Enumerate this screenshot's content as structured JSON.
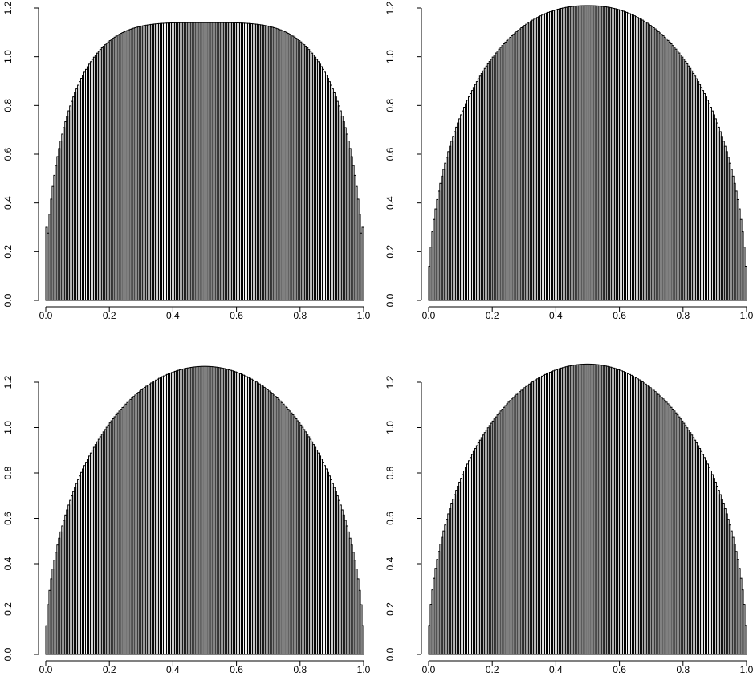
{
  "chart_data": [
    {
      "type": "histogram",
      "panel": "top-left",
      "title": "",
      "xlabel": "",
      "ylabel": "",
      "xlim": [
        0,
        1
      ],
      "ylim": [
        0,
        1.2
      ],
      "x_ticks": [
        "0.0",
        "0.2",
        "0.4",
        "0.6",
        "0.8",
        "1.0"
      ],
      "y_ticks": [
        "0.0",
        "0.2",
        "0.4",
        "0.6",
        "0.8",
        "1.0",
        "1.2"
      ],
      "bins": 200,
      "shape": "flat-topped arch (approx. 1.14*(1-|2x-1|^4)^0.5)",
      "peak_density": 1.14,
      "edge_density": 0.3,
      "bar_color": "#000000",
      "grid": false
    },
    {
      "type": "histogram",
      "panel": "top-right",
      "title": "",
      "xlabel": "",
      "ylabel": "",
      "xlim": [
        0,
        1
      ],
      "ylim": [
        0,
        1.2
      ],
      "x_ticks": [
        "0.0",
        "0.2",
        "0.4",
        "0.6",
        "0.8",
        "1.0"
      ],
      "y_ticks": [
        "0.0",
        "0.2",
        "0.4",
        "0.6",
        "0.8",
        "1.0",
        "1.2"
      ],
      "bins": 200,
      "shape": "semi-elliptical arch (approx. 1.21*(1-|2x-1|^2.2)^0.5)",
      "peak_density": 1.21,
      "edge_density": 0.14,
      "bar_color": "#000000",
      "grid": false
    },
    {
      "type": "histogram",
      "panel": "bottom-left",
      "title": "",
      "xlabel": "",
      "ylabel": "",
      "xlim": [
        0,
        1
      ],
      "ylim": [
        0,
        1.2
      ],
      "x_ticks": [
        "0.0",
        "0.2",
        "0.4",
        "0.6",
        "0.8",
        "1.0"
      ],
      "y_ticks": [
        "0.0",
        "0.2",
        "0.4",
        "0.6",
        "0.8",
        "1.0",
        "1.2"
      ],
      "bins": 200,
      "shape": "semicircle-like arch (approx. 1.27*(1-(2x-1)^2)^0.5)",
      "peak_density": 1.27,
      "edge_density": 0.07,
      "bar_color": "#000000",
      "grid": false
    },
    {
      "type": "histogram",
      "panel": "bottom-right",
      "title": "",
      "xlabel": "",
      "ylabel": "",
      "xlim": [
        0,
        1
      ],
      "ylim": [
        0,
        1.2
      ],
      "x_ticks": [
        "0.0",
        "0.2",
        "0.4",
        "0.6",
        "0.8",
        "1.0"
      ],
      "y_ticks": [
        "0.0",
        "0.2",
        "0.4",
        "0.6",
        "0.8",
        "1.0",
        "1.2"
      ],
      "bins": 200,
      "shape": "semicircle-like arch (approx. 1.28*(1-(2x-1)^2)^0.5)",
      "peak_density": 1.28,
      "edge_density": 0.05,
      "bar_color": "#000000",
      "grid": false
    }
  ]
}
